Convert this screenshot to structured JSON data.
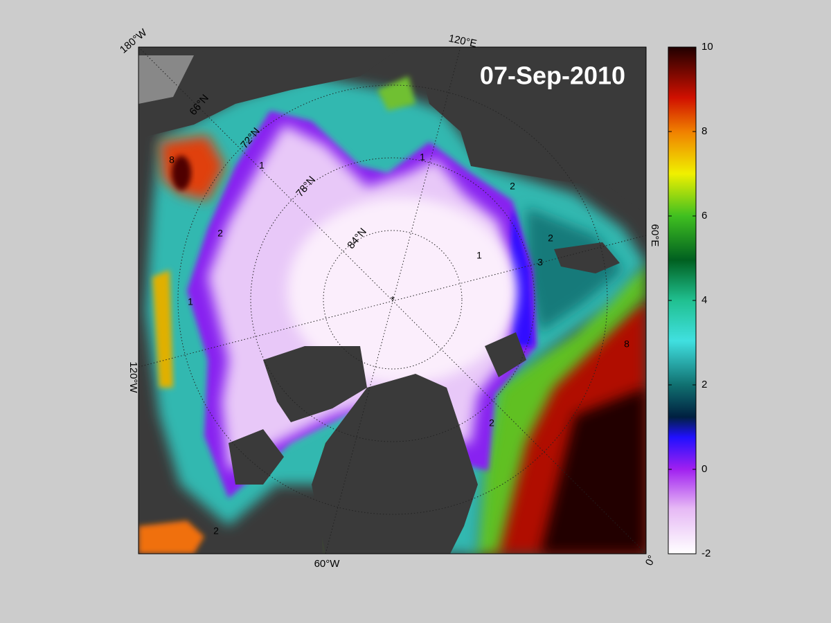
{
  "title": "07-Sep-2010",
  "longitude_labels": [
    "180°W",
    "120°E",
    "60°E",
    "0°",
    "60°W",
    "120°W"
  ],
  "latitude_labels": [
    "66°N",
    "72°N",
    "78°N",
    "84°N"
  ],
  "contour_labels": [
    "8",
    "2",
    "1",
    "1",
    "2",
    "3",
    "2",
    "1",
    "2",
    "8",
    "1",
    "2"
  ],
  "colorbar": {
    "lim": [
      -2,
      10
    ],
    "ticks": [
      -2,
      0,
      2,
      4,
      6,
      8,
      10
    ]
  }
}
